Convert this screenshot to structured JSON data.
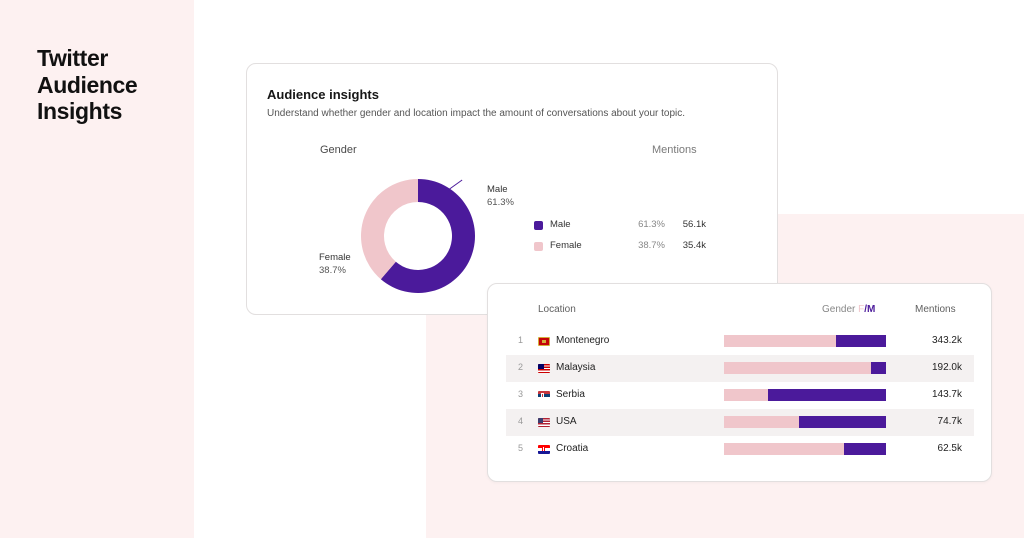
{
  "page": {
    "title_lines": [
      "Twitter",
      "Audience",
      "Insights"
    ]
  },
  "insights_card": {
    "title": "Audience insights",
    "description": "Understand whether gender and location impact the amount of conversations about your topic.",
    "gender_header": "Gender",
    "mentions_header": "Mentions",
    "donut": [
      {
        "label": "Male",
        "percent_label": "61.3%",
        "value": 61.3,
        "color": "#4b1a9b"
      },
      {
        "label": "Female",
        "percent_label": "38.7%",
        "value": 38.7,
        "color": "#f0c6cb"
      }
    ],
    "legend": [
      {
        "label": "Male",
        "percent": "61.3%",
        "mentions": "56.1k",
        "color": "#4b1a9b"
      },
      {
        "label": "Female",
        "percent": "38.7%",
        "mentions": "35.4k",
        "color": "#f0c6cb"
      }
    ]
  },
  "location_card": {
    "headers": {
      "location": "Location",
      "gender_prefix": "Gender ",
      "gender_f": "F",
      "gender_slash": "/",
      "gender_m": "M",
      "mentions": "Mentions"
    },
    "rows": [
      {
        "rank": "1",
        "country": "Montenegro",
        "flag": "montenegro-flag-icon",
        "male_fraction": 0.31,
        "mentions": "343.2k"
      },
      {
        "rank": "2",
        "country": "Malaysia",
        "flag": "malaysia-flag-icon",
        "male_fraction": 0.09,
        "mentions": "192.0k"
      },
      {
        "rank": "3",
        "country": "Serbia",
        "flag": "serbia-flag-icon",
        "male_fraction": 0.73,
        "mentions": "143.7k"
      },
      {
        "rank": "4",
        "country": "USA",
        "flag": "usa-flag-icon",
        "male_fraction": 0.54,
        "mentions": "74.7k"
      },
      {
        "rank": "5",
        "country": "Croatia",
        "flag": "croatia-flag-icon",
        "male_fraction": 0.26,
        "mentions": "62.5k"
      }
    ],
    "colors": {
      "female": "#f0c6cb",
      "male": "#4b1a9b"
    }
  }
}
